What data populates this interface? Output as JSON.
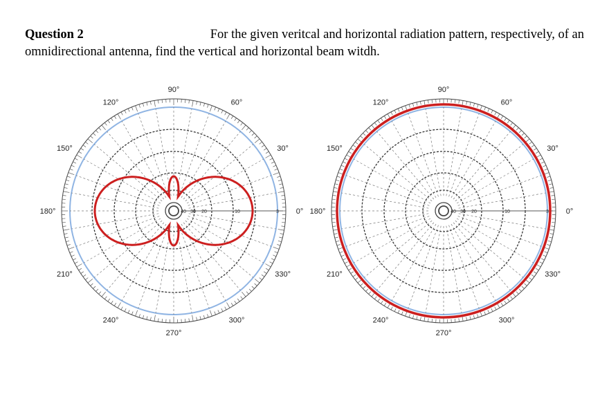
{
  "question": {
    "label": "Question 2",
    "line1": "For the given veritcal and horizontal radiation pattern, respectively, of an",
    "line2": "omnidirectional antenna, find the vertical and horizontal beam witdh."
  },
  "colors": {
    "pattern": "#cc1f1f",
    "outer_ring": "#8fb4e3",
    "grid": "#333333"
  },
  "angle_labels": [
    "0°",
    "30°",
    "60°",
    "90°",
    "120°",
    "150°",
    "180°",
    "210°",
    "240°",
    "270°",
    "300°",
    "330°"
  ],
  "ring_labels": [
    "40",
    "30",
    "20",
    "10",
    "3"
  ],
  "plots": [
    {
      "name": "vertical-pattern",
      "pattern": "lobes"
    },
    {
      "name": "horizontal-pattern",
      "pattern": "circle"
    }
  ]
}
